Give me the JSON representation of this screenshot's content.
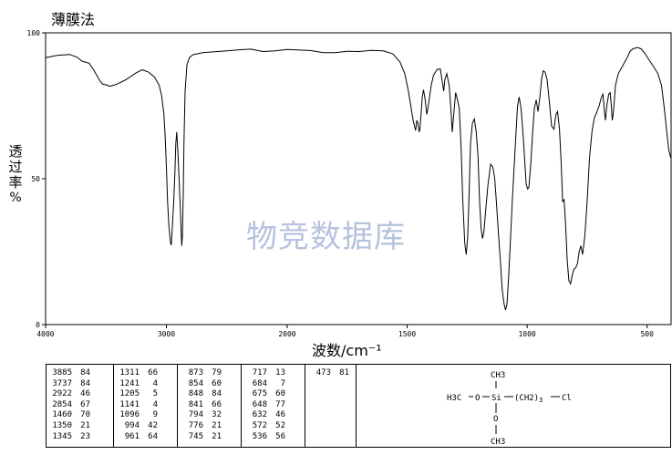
{
  "title": "薄膜法",
  "watermark": "物竞数据库",
  "chart_data": {
    "type": "line",
    "xlabel": "波数/cm⁻¹",
    "ylabel_chars": [
      "透",
      "过",
      "率"
    ],
    "ylabel_unit": "%",
    "xlim": [
      4000,
      400
    ],
    "ylim": [
      0,
      100
    ],
    "x_ticks": [
      4000,
      3000,
      2000,
      1500,
      1000,
      500
    ],
    "y_ticks": [
      0,
      50,
      100
    ],
    "series": [
      {
        "points": [
          [
            4000,
            91.5
          ],
          [
            3900,
            92.3
          ],
          [
            3800,
            92.6
          ],
          [
            3737,
            91.6
          ],
          [
            3700,
            90.3
          ],
          [
            3640,
            89.6
          ],
          [
            3600,
            87.2
          ],
          [
            3560,
            84.2
          ],
          [
            3530,
            82.4
          ],
          [
            3500,
            82.2
          ],
          [
            3470,
            81.7
          ],
          [
            3440,
            82.0
          ],
          [
            3400,
            82.6
          ],
          [
            3350,
            83.6
          ],
          [
            3300,
            84.9
          ],
          [
            3250,
            86.3
          ],
          [
            3200,
            87.3
          ],
          [
            3150,
            86.6
          ],
          [
            3100,
            84.9
          ],
          [
            3060,
            82.0
          ],
          [
            3040,
            78.6
          ],
          [
            3020,
            72.0
          ],
          [
            3010,
            64.0
          ],
          [
            3000,
            54.0
          ],
          [
            2990,
            42.0
          ],
          [
            2980,
            34.0
          ],
          [
            2970,
            29.5
          ],
          [
            2965,
            28.0
          ],
          [
            2960,
            27.2
          ],
          [
            2958,
            28.5
          ],
          [
            2950,
            34.0
          ],
          [
            2940,
            42.0
          ],
          [
            2930,
            52.0
          ],
          [
            2922,
            62.0
          ],
          [
            2915,
            66.0
          ],
          [
            2905,
            59.0
          ],
          [
            2895,
            50.0
          ],
          [
            2885,
            40.0
          ],
          [
            2878,
            32.0
          ],
          [
            2873,
            27.0
          ],
          [
            2868,
            30.0
          ],
          [
            2860,
            45.0
          ],
          [
            2854,
            63.0
          ],
          [
            2845,
            80.0
          ],
          [
            2830,
            89.0
          ],
          [
            2810,
            91.5
          ],
          [
            2780,
            92.5
          ],
          [
            2700,
            93.2
          ],
          [
            2600,
            93.5
          ],
          [
            2500,
            93.8
          ],
          [
            2400,
            94.2
          ],
          [
            2300,
            94.4
          ],
          [
            2250,
            94.0
          ],
          [
            2200,
            93.6
          ],
          [
            2100,
            93.8
          ],
          [
            2000,
            94.3
          ],
          [
            1900,
            93.9
          ],
          [
            1850,
            93.2
          ],
          [
            1800,
            93.2
          ],
          [
            1750,
            93.7
          ],
          [
            1700,
            93.6
          ],
          [
            1650,
            94.0
          ],
          [
            1600,
            93.8
          ],
          [
            1560,
            92.8
          ],
          [
            1530,
            90.0
          ],
          [
            1510,
            86.0
          ],
          [
            1495,
            80.0
          ],
          [
            1485,
            75.0
          ],
          [
            1475,
            70.0
          ],
          [
            1465,
            66.5
          ],
          [
            1460,
            70.0
          ],
          [
            1455,
            69.0
          ],
          [
            1450,
            66.0
          ],
          [
            1447,
            67.0
          ],
          [
            1442,
            72.0
          ],
          [
            1437,
            78.0
          ],
          [
            1432,
            80.5
          ],
          [
            1425,
            77.0
          ],
          [
            1418,
            72.0
          ],
          [
            1410,
            76.0
          ],
          [
            1400,
            82.0
          ],
          [
            1390,
            85.5
          ],
          [
            1375,
            87.5
          ],
          [
            1362,
            87.6
          ],
          [
            1353,
            83.0
          ],
          [
            1348,
            80.0
          ],
          [
            1343,
            84.0
          ],
          [
            1335,
            86.0
          ],
          [
            1325,
            82.0
          ],
          [
            1318,
            74.0
          ],
          [
            1312,
            66.0
          ],
          [
            1305,
            73.0
          ],
          [
            1298,
            79.5
          ],
          [
            1290,
            77.0
          ],
          [
            1283,
            74.0
          ],
          [
            1275,
            60.0
          ],
          [
            1268,
            42.0
          ],
          [
            1260,
            28.0
          ],
          [
            1254,
            24.0
          ],
          [
            1248,
            30.0
          ],
          [
            1242,
            44.0
          ],
          [
            1236,
            62.0
          ],
          [
            1228,
            69.0
          ],
          [
            1220,
            70.5
          ],
          [
            1212,
            66.0
          ],
          [
            1205,
            58.0
          ],
          [
            1198,
            42.0
          ],
          [
            1192,
            33.0
          ],
          [
            1186,
            29.5
          ],
          [
            1180,
            32.0
          ],
          [
            1172,
            40.0
          ],
          [
            1163,
            48.0
          ],
          [
            1152,
            55.0
          ],
          [
            1143,
            54.0
          ],
          [
            1135,
            50.0
          ],
          [
            1128,
            42.0
          ],
          [
            1120,
            32.0
          ],
          [
            1112,
            22.0
          ],
          [
            1104,
            12.0
          ],
          [
            1096,
            7.0
          ],
          [
            1090,
            5.0
          ],
          [
            1084,
            7.0
          ],
          [
            1078,
            15.0
          ],
          [
            1070,
            28.0
          ],
          [
            1062,
            42.0
          ],
          [
            1055,
            53.0
          ],
          [
            1047,
            65.0
          ],
          [
            1040,
            75.0
          ],
          [
            1033,
            78.0
          ],
          [
            1025,
            74.0
          ],
          [
            1017,
            65.0
          ],
          [
            1010,
            56.0
          ],
          [
            1004,
            48.0
          ],
          [
            998,
            46.5
          ],
          [
            993,
            47.0
          ],
          [
            985,
            55.0
          ],
          [
            977,
            66.0
          ],
          [
            970,
            74.0
          ],
          [
            962,
            77.0
          ],
          [
            955,
            73.0
          ],
          [
            947,
            78.0
          ],
          [
            940,
            84.0
          ],
          [
            933,
            87.0
          ],
          [
            925,
            86.5
          ],
          [
            917,
            84.0
          ],
          [
            908,
            77.0
          ],
          [
            898,
            68.0
          ],
          [
            888,
            67.0
          ],
          [
            880,
            72.0
          ],
          [
            873,
            73.0
          ],
          [
            865,
            67.0
          ],
          [
            858,
            55.0
          ],
          [
            852,
            42.0
          ],
          [
            846,
            43.0
          ],
          [
            840,
            35.0
          ],
          [
            833,
            22.0
          ],
          [
            826,
            15.0
          ],
          [
            819,
            14.0
          ],
          [
            812,
            17.0
          ],
          [
            805,
            19.0
          ],
          [
            797,
            19.5
          ],
          [
            790,
            21.0
          ],
          [
            783,
            25.0
          ],
          [
            776,
            27.0
          ],
          [
            769,
            24.0
          ],
          [
            760,
            30.0
          ],
          [
            750,
            42.0
          ],
          [
            740,
            57.0
          ],
          [
            730,
            66.0
          ],
          [
            722,
            70.0
          ],
          [
            717,
            71.5
          ],
          [
            711,
            72.5
          ],
          [
            700,
            75.0
          ],
          [
            690,
            78.0
          ],
          [
            684,
            79.0
          ],
          [
            678,
            73.0
          ],
          [
            674,
            70.0
          ],
          [
            668,
            75.0
          ],
          [
            660,
            79.0
          ],
          [
            654,
            79.5
          ],
          [
            649,
            75.0
          ],
          [
            645,
            70.0
          ],
          [
            640,
            73.0
          ],
          [
            632,
            82.0
          ],
          [
            620,
            86.0
          ],
          [
            600,
            89.0
          ],
          [
            580,
            92.0
          ],
          [
            572,
            93.5
          ],
          [
            560,
            94.5
          ],
          [
            540,
            95.0
          ],
          [
            525,
            94.5
          ],
          [
            510,
            93.0
          ],
          [
            490,
            90.5
          ],
          [
            470,
            88.0
          ],
          [
            455,
            86.0
          ],
          [
            440,
            82.0
          ],
          [
            428,
            74.0
          ],
          [
            418,
            66.0
          ],
          [
            410,
            60.0
          ],
          [
            404,
            58.0
          ],
          [
            400,
            57.0
          ]
        ]
      }
    ]
  },
  "peak_table": {
    "columns": [
      [
        [
          "3885",
          "84"
        ],
        [
          "3737",
          "84"
        ],
        [
          "2922",
          "46"
        ],
        [
          "2854",
          "67"
        ],
        [
          "1460",
          "70"
        ],
        [
          "1350",
          "21"
        ],
        [
          "1345",
          "23"
        ]
      ],
      [
        [
          "1311",
          "66"
        ],
        [
          "1241",
          "4"
        ],
        [
          "1205",
          "5"
        ],
        [
          "1141",
          "4"
        ],
        [
          "1096",
          "9"
        ],
        [
          "994",
          "42"
        ],
        [
          "961",
          "64"
        ]
      ],
      [
        [
          "873",
          "79"
        ],
        [
          "854",
          "60"
        ],
        [
          "848",
          "84"
        ],
        [
          "841",
          "66"
        ],
        [
          "794",
          "32"
        ],
        [
          "776",
          "21"
        ],
        [
          "745",
          "21"
        ]
      ],
      [
        [
          "717",
          "13"
        ],
        [
          "684",
          "7"
        ],
        [
          "675",
          "60"
        ],
        [
          "648",
          "77"
        ],
        [
          "632",
          "46"
        ],
        [
          "572",
          "52"
        ],
        [
          "536",
          "56"
        ]
      ],
      [
        [
          "473",
          "81"
        ]
      ]
    ]
  },
  "structure": {
    "top_group": "CH3",
    "left_group": "H3C",
    "left_o": "O",
    "si": "Si",
    "chain_open": "(CH2)",
    "chain_sub": "3",
    "chain_end": "Cl",
    "bottom_o": "O",
    "bottom_group": "CH3"
  }
}
